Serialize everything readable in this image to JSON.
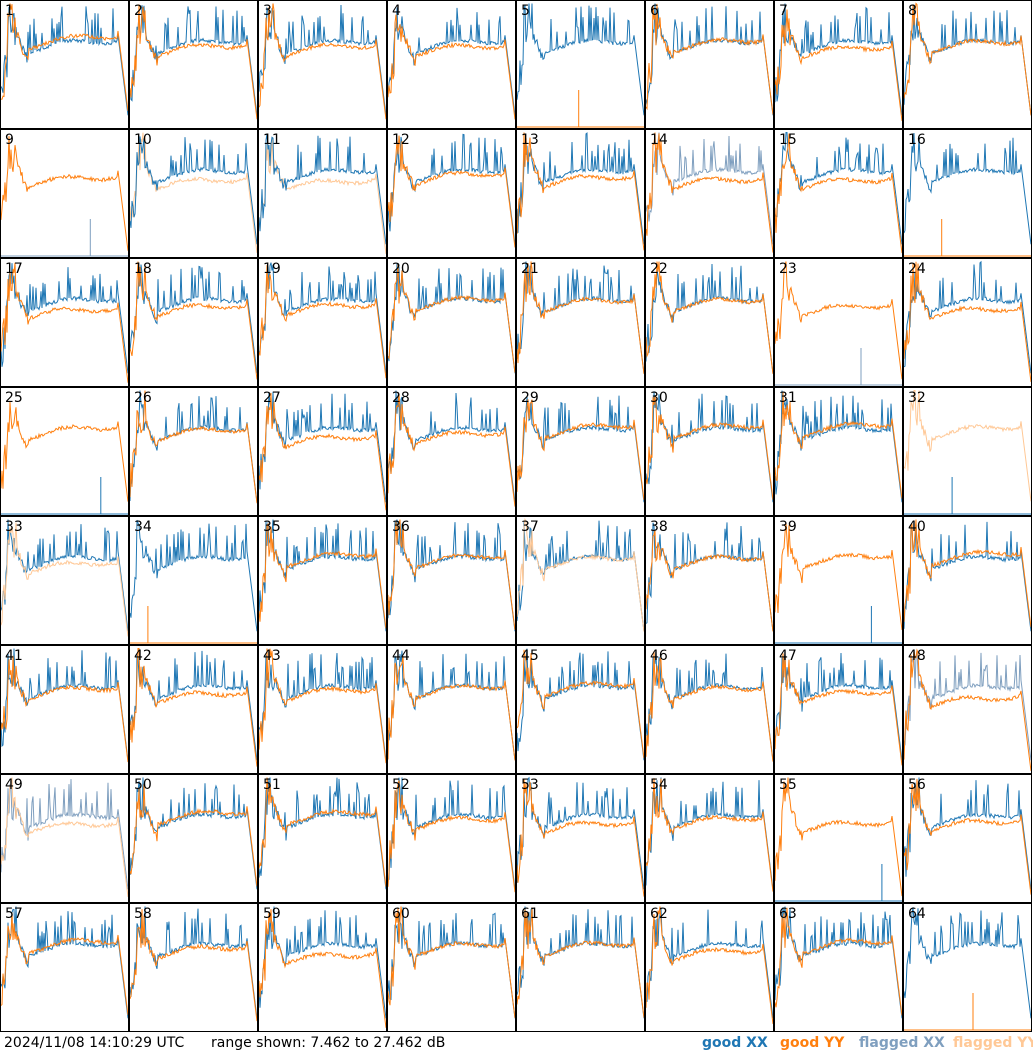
{
  "footer": {
    "timestamp": "2024/11/08 14:10:29 UTC",
    "range": "range shown: 7.462 to 27.462 dB"
  },
  "legend": [
    {
      "key": "good_xx",
      "label": "good XX",
      "color": "#1f77b4"
    },
    {
      "key": "good_yy",
      "label": "good YY",
      "color": "#ff7f0e"
    },
    {
      "key": "flagged_xx",
      "label": "flagged XX",
      "color": "#7f9fbf"
    },
    {
      "key": "flagged_yy",
      "label": "flagged YY",
      "color": "#ffc896"
    }
  ],
  "chart_data": {
    "type": "line",
    "grid_rows": 8,
    "grid_cols": 8,
    "xlabel": "",
    "ylabel": "",
    "ylim_db": [
      7.462,
      27.462
    ],
    "panels": [
      {
        "id": "1",
        "xx": "good",
        "yy": "good",
        "yy_on_top": true
      },
      {
        "id": "2",
        "xx": "good",
        "yy": "good",
        "yy_on_top": true
      },
      {
        "id": "3",
        "xx": "good",
        "yy": "good",
        "yy_on_top": true
      },
      {
        "id": "4",
        "xx": "good",
        "yy": "good",
        "yy_on_top": true
      },
      {
        "id": "5",
        "xx": "good",
        "yy": "flat",
        "yy_on_top": false
      },
      {
        "id": "6",
        "xx": "good",
        "yy": "good",
        "yy_on_top": true
      },
      {
        "id": "7",
        "xx": "good",
        "yy": "good",
        "yy_on_top": true
      },
      {
        "id": "8",
        "xx": "good",
        "yy": "good",
        "yy_on_top": true
      },
      {
        "id": "9",
        "xx": "flat_flagged",
        "yy": "good",
        "yy_on_top": true
      },
      {
        "id": "10",
        "xx": "good",
        "yy": "flagged",
        "yy_on_top": false
      },
      {
        "id": "11",
        "xx": "good",
        "yy": "flagged",
        "yy_on_top": false
      },
      {
        "id": "12",
        "xx": "good",
        "yy": "good",
        "yy_on_top": true
      },
      {
        "id": "13",
        "xx": "good",
        "yy": "good",
        "yy_on_top": true
      },
      {
        "id": "14",
        "xx": "flagged",
        "yy": "good",
        "yy_on_top": true
      },
      {
        "id": "15",
        "xx": "good",
        "yy": "good",
        "yy_on_top": true
      },
      {
        "id": "16",
        "xx": "good",
        "yy": "flat",
        "yy_on_top": false
      },
      {
        "id": "17",
        "xx": "good",
        "yy": "good",
        "yy_on_top": true
      },
      {
        "id": "18",
        "xx": "good",
        "yy": "good",
        "yy_on_top": true
      },
      {
        "id": "19",
        "xx": "good",
        "yy": "good",
        "yy_on_top": true
      },
      {
        "id": "20",
        "xx": "good",
        "yy": "good",
        "yy_on_top": true
      },
      {
        "id": "21",
        "xx": "good",
        "yy": "good",
        "yy_on_top": true
      },
      {
        "id": "22",
        "xx": "good",
        "yy": "good",
        "yy_on_top": true
      },
      {
        "id": "23",
        "xx": "flat_flagged",
        "yy": "good",
        "yy_on_top": true
      },
      {
        "id": "24",
        "xx": "good",
        "yy": "good",
        "yy_on_top": true
      },
      {
        "id": "25",
        "xx": "flat",
        "yy": "good",
        "yy_on_top": true
      },
      {
        "id": "26",
        "xx": "good",
        "yy": "good",
        "yy_on_top": true
      },
      {
        "id": "27",
        "xx": "good",
        "yy": "good",
        "yy_on_top": true
      },
      {
        "id": "28",
        "xx": "good",
        "yy": "good",
        "yy_on_top": true
      },
      {
        "id": "29",
        "xx": "good",
        "yy": "good",
        "yy_on_top": true
      },
      {
        "id": "30",
        "xx": "good",
        "yy": "good",
        "yy_on_top": true
      },
      {
        "id": "31",
        "xx": "good",
        "yy": "good",
        "yy_on_top": true
      },
      {
        "id": "32",
        "xx": "flat",
        "yy": "flagged",
        "yy_on_top": true
      },
      {
        "id": "33",
        "xx": "good",
        "yy": "flagged",
        "yy_on_top": true
      },
      {
        "id": "34",
        "xx": "good",
        "yy": "flat",
        "yy_on_top": true
      },
      {
        "id": "35",
        "xx": "good",
        "yy": "good",
        "yy_on_top": true
      },
      {
        "id": "36",
        "xx": "good",
        "yy": "good",
        "yy_on_top": true
      },
      {
        "id": "37",
        "xx": "good",
        "yy": "flagged",
        "yy_on_top": true
      },
      {
        "id": "38",
        "xx": "good",
        "yy": "good",
        "yy_on_top": true
      },
      {
        "id": "39",
        "xx": "flat",
        "yy": "good",
        "yy_on_top": true
      },
      {
        "id": "40",
        "xx": "good",
        "yy": "good",
        "yy_on_top": true
      },
      {
        "id": "41",
        "xx": "good",
        "yy": "good",
        "yy_on_top": true
      },
      {
        "id": "42",
        "xx": "good",
        "yy": "good",
        "yy_on_top": true
      },
      {
        "id": "43",
        "xx": "good",
        "yy": "good",
        "yy_on_top": true
      },
      {
        "id": "44",
        "xx": "good",
        "yy": "good",
        "yy_on_top": true
      },
      {
        "id": "45",
        "xx": "good",
        "yy": "good",
        "yy_on_top": true
      },
      {
        "id": "46",
        "xx": "good",
        "yy": "good",
        "yy_on_top": true
      },
      {
        "id": "47",
        "xx": "good",
        "yy": "good",
        "yy_on_top": true
      },
      {
        "id": "48",
        "xx": "flagged",
        "yy": "good",
        "yy_on_top": true
      },
      {
        "id": "49",
        "xx": "flagged",
        "yy": "flagged",
        "yy_on_top": true
      },
      {
        "id": "50",
        "xx": "good",
        "yy": "good",
        "yy_on_top": true
      },
      {
        "id": "51",
        "xx": "good",
        "yy": "good",
        "yy_on_top": true
      },
      {
        "id": "52",
        "xx": "good",
        "yy": "good",
        "yy_on_top": true
      },
      {
        "id": "53",
        "xx": "good",
        "yy": "good",
        "yy_on_top": true
      },
      {
        "id": "54",
        "xx": "good",
        "yy": "good",
        "yy_on_top": true
      },
      {
        "id": "55",
        "xx": "flat",
        "yy": "good",
        "yy_on_top": true
      },
      {
        "id": "56",
        "xx": "good",
        "yy": "good",
        "yy_on_top": true
      },
      {
        "id": "57",
        "xx": "good",
        "yy": "good",
        "yy_on_top": true
      },
      {
        "id": "58",
        "xx": "good",
        "yy": "good",
        "yy_on_top": true
      },
      {
        "id": "59",
        "xx": "good",
        "yy": "good",
        "yy_on_top": true
      },
      {
        "id": "60",
        "xx": "good",
        "yy": "good",
        "yy_on_top": true
      },
      {
        "id": "61",
        "xx": "good",
        "yy": "good",
        "yy_on_top": true
      },
      {
        "id": "62",
        "xx": "good",
        "yy": "good",
        "yy_on_top": true
      },
      {
        "id": "63",
        "xx": "good",
        "yy": "good",
        "yy_on_top": true
      },
      {
        "id": "64",
        "xx": "good",
        "yy": "flat",
        "yy_on_top": false
      }
    ]
  }
}
